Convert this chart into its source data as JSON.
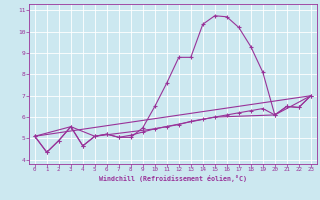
{
  "xlabel": "Windchill (Refroidissement éolien,°C)",
  "bg_color": "#cce8f0",
  "line_color": "#993399",
  "grid_color": "#ffffff",
  "xlim": [
    -0.5,
    23.5
  ],
  "ylim": [
    3.8,
    11.3
  ],
  "xticks": [
    0,
    1,
    2,
    3,
    4,
    5,
    6,
    7,
    8,
    9,
    10,
    11,
    12,
    13,
    14,
    15,
    16,
    17,
    18,
    19,
    20,
    21,
    22,
    23
  ],
  "yticks": [
    4,
    5,
    6,
    7,
    8,
    9,
    10,
    11
  ],
  "series1": [
    [
      0,
      5.1
    ],
    [
      1,
      4.35
    ],
    [
      2,
      4.9
    ],
    [
      3,
      5.55
    ],
    [
      4,
      4.65
    ],
    [
      5,
      5.1
    ],
    [
      6,
      5.2
    ],
    [
      7,
      5.05
    ],
    [
      8,
      5.05
    ],
    [
      9,
      5.5
    ],
    [
      10,
      6.5
    ],
    [
      11,
      7.6
    ],
    [
      12,
      8.8
    ],
    [
      13,
      8.8
    ],
    [
      14,
      10.35
    ],
    [
      15,
      10.75
    ],
    [
      16,
      10.7
    ],
    [
      17,
      10.2
    ],
    [
      18,
      9.3
    ],
    [
      19,
      8.1
    ],
    [
      20,
      6.1
    ],
    [
      21,
      6.5
    ],
    [
      22,
      6.45
    ],
    [
      23,
      7.0
    ]
  ],
  "series2": [
    [
      0,
      5.1
    ],
    [
      23,
      7.0
    ]
  ],
  "series3": [
    [
      0,
      5.1
    ],
    [
      1,
      4.35
    ],
    [
      2,
      4.9
    ],
    [
      3,
      5.55
    ],
    [
      4,
      4.65
    ],
    [
      5,
      5.1
    ],
    [
      6,
      5.2
    ],
    [
      7,
      5.05
    ],
    [
      8,
      5.15
    ],
    [
      9,
      5.3
    ],
    [
      10,
      5.45
    ],
    [
      11,
      5.55
    ],
    [
      12,
      5.65
    ],
    [
      13,
      5.8
    ],
    [
      14,
      5.9
    ],
    [
      15,
      6.0
    ],
    [
      16,
      6.1
    ],
    [
      17,
      6.2
    ],
    [
      18,
      6.3
    ],
    [
      19,
      6.4
    ],
    [
      20,
      6.1
    ],
    [
      21,
      6.5
    ],
    [
      22,
      6.45
    ],
    [
      23,
      7.0
    ]
  ],
  "series4": [
    [
      0,
      5.1
    ],
    [
      3,
      5.55
    ],
    [
      5,
      5.1
    ],
    [
      10,
      5.45
    ],
    [
      15,
      6.0
    ],
    [
      20,
      6.1
    ],
    [
      23,
      7.0
    ]
  ]
}
